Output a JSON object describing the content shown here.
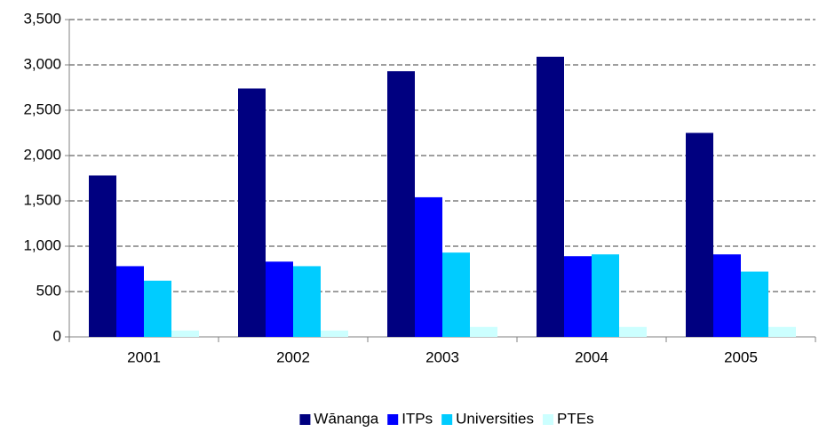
{
  "chart_data": {
    "type": "bar",
    "categories": [
      "2001",
      "2002",
      "2003",
      "2004",
      "2005"
    ],
    "series": [
      {
        "name": "Wānanga",
        "color": "#000080",
        "values": [
          1780,
          2740,
          2930,
          3090,
          2250
        ]
      },
      {
        "name": "ITPs",
        "color": "#0000ff",
        "values": [
          780,
          830,
          1540,
          890,
          910
        ]
      },
      {
        "name": "Universities",
        "color": "#00ccff",
        "values": [
          620,
          780,
          930,
          910,
          720
        ]
      },
      {
        "name": "PTEs",
        "color": "#ccffff",
        "values": [
          70,
          70,
          110,
          110,
          110
        ]
      }
    ],
    "ylim": [
      0,
      3500
    ],
    "yticks": [
      0,
      500,
      {
        "value": 1000,
        "label": "1,000"
      },
      {
        "value": 1500,
        "label": "1,500"
      },
      {
        "value": 2000,
        "label": "2,000"
      },
      {
        "value": 2500,
        "label": "2,500"
      },
      {
        "value": 3000,
        "label": "3,000"
      },
      {
        "value": 3500,
        "label": "3,500"
      }
    ],
    "grid": true,
    "legend": "bottom"
  }
}
